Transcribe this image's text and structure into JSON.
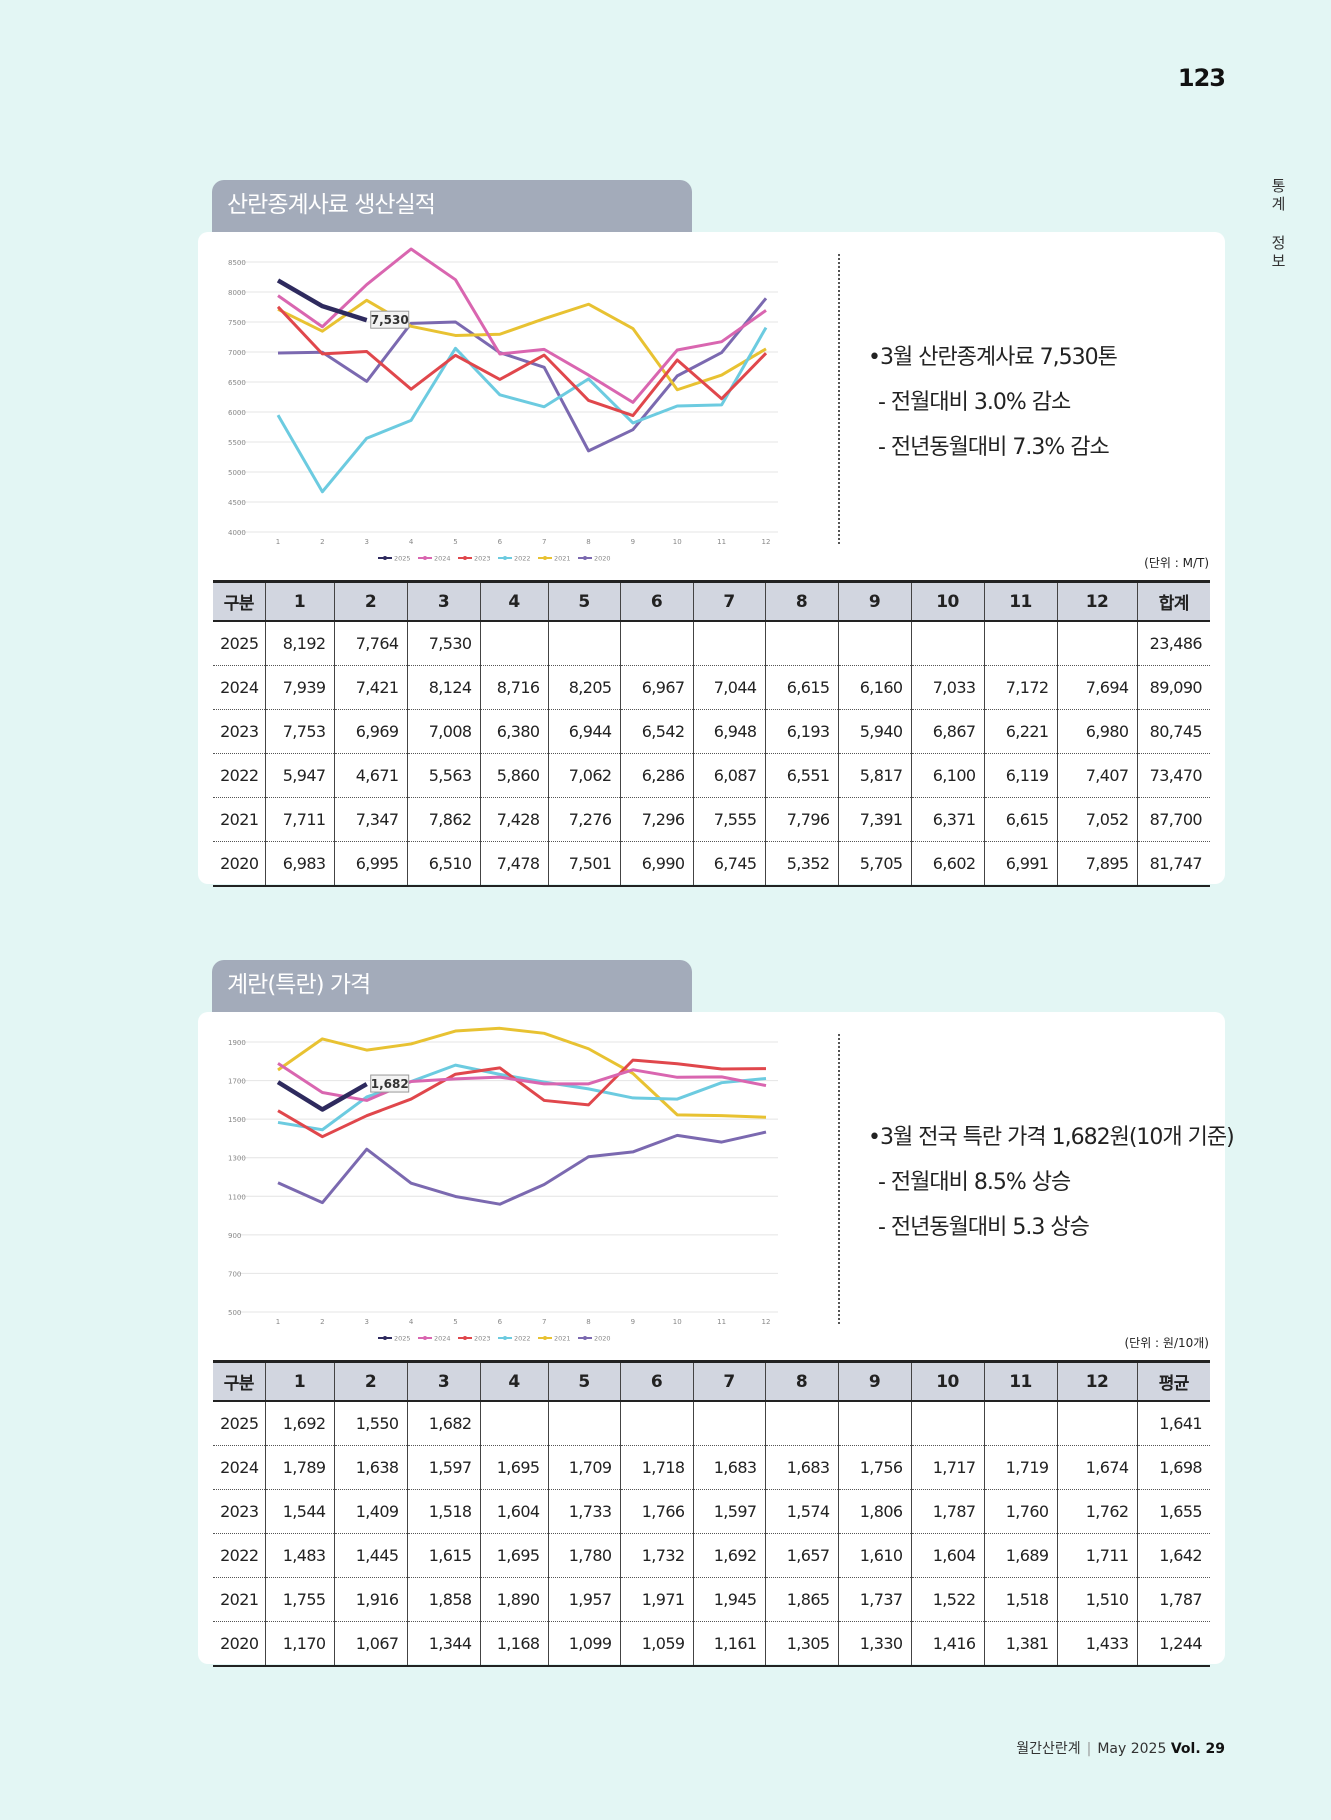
{
  "page_number": "123",
  "side_label": "통계 정보",
  "sections": [
    {
      "title": "산란종계사료 생산실적",
      "chart": {
        "type": "line",
        "categories": [
          "1",
          "2",
          "3",
          "4",
          "5",
          "6",
          "7",
          "8",
          "9",
          "10",
          "11",
          "12"
        ],
        "ylim": [
          4000,
          8500
        ],
        "yticks": [
          4000,
          4500,
          5000,
          5500,
          6000,
          6500,
          7000,
          7500,
          8000,
          8500
        ],
        "grid": true,
        "series": [
          {
            "name": "2025",
            "color": "#2e2a5e",
            "values": [
              8192,
              7764,
              7530,
              null,
              null,
              null,
              null,
              null,
              null,
              null,
              null,
              null
            ],
            "value_labels": [
              null,
              null,
              "7,530",
              null,
              null,
              null,
              null,
              null,
              null,
              null,
              null,
              null
            ]
          },
          {
            "name": "2024",
            "color": "#d966b0",
            "values": [
              7939,
              7421,
              8124,
              8716,
              8205,
              6967,
              7044,
              6615,
              6160,
              7033,
              7172,
              7694
            ]
          },
          {
            "name": "2023",
            "color": "#e0474c",
            "values": [
              7753,
              6969,
              7008,
              6380,
              6944,
              6542,
              6948,
              6193,
              5940,
              6867,
              6221,
              6980
            ]
          },
          {
            "name": "2022",
            "color": "#6ccbe0",
            "values": [
              5947,
              4671,
              5563,
              5860,
              7062,
              6286,
              6087,
              6551,
              5817,
              6100,
              6119,
              7407
            ]
          },
          {
            "name": "2021",
            "color": "#e8c232",
            "values": [
              7711,
              7347,
              7862,
              7428,
              7276,
              7296,
              7555,
              7796,
              7391,
              6371,
              6615,
              7052
            ]
          },
          {
            "name": "2020",
            "color": "#7b69b0",
            "values": [
              6983,
              6995,
              6510,
              7478,
              7501,
              6990,
              6745,
              5352,
              5705,
              6602,
              6991,
              7895
            ]
          }
        ]
      },
      "notes": [
        "•3월 산란종계사료 7,530톤",
        "- 전월대비 3.0% 감소",
        "- 전년동월대비 7.3% 감소"
      ],
      "unit": "(단위 : M/T)",
      "table": {
        "header": [
          "구분",
          "1",
          "2",
          "3",
          "4",
          "5",
          "6",
          "7",
          "8",
          "9",
          "10",
          "11",
          "12",
          "합계"
        ],
        "rows": [
          [
            "2025",
            "8,192",
            "7,764",
            "7,530",
            null,
            null,
            null,
            null,
            null,
            null,
            null,
            null,
            null,
            "23,486"
          ],
          [
            "2024",
            "7,939",
            "7,421",
            "8,124",
            "8,716",
            "8,205",
            "6,967",
            "7,044",
            "6,615",
            "6,160",
            "7,033",
            "7,172",
            "7,694",
            "89,090"
          ],
          [
            "2023",
            "7,753",
            "6,969",
            "7,008",
            "6,380",
            "6,944",
            "6,542",
            "6,948",
            "6,193",
            "5,940",
            "6,867",
            "6,221",
            "6,980",
            "80,745"
          ],
          [
            "2022",
            "5,947",
            "4,671",
            "5,563",
            "5,860",
            "7,062",
            "6,286",
            "6,087",
            "6,551",
            "5,817",
            "6,100",
            "6,119",
            "7,407",
            "73,470"
          ],
          [
            "2021",
            "7,711",
            "7,347",
            "7,862",
            "7,428",
            "7,276",
            "7,296",
            "7,555",
            "7,796",
            "7,391",
            "6,371",
            "6,615",
            "7,052",
            "87,700"
          ],
          [
            "2020",
            "6,983",
            "6,995",
            "6,510",
            "7,478",
            "7,501",
            "6,990",
            "6,745",
            "5,352",
            "5,705",
            "6,602",
            "6,991",
            "7,895",
            "81,747"
          ]
        ]
      }
    },
    {
      "title": "계란(특란) 가격",
      "chart": {
        "type": "line",
        "categories": [
          "1",
          "2",
          "3",
          "4",
          "5",
          "6",
          "7",
          "8",
          "9",
          "10",
          "11",
          "12"
        ],
        "ylim": [
          500,
          1900
        ],
        "yticks": [
          500,
          700,
          900,
          1100,
          1300,
          1500,
          1700,
          1900
        ],
        "grid": true,
        "series": [
          {
            "name": "2025",
            "color": "#2e2a5e",
            "values": [
              1692,
              1550,
              1682,
              null,
              null,
              null,
              null,
              null,
              null,
              null,
              null,
              null
            ],
            "value_labels": [
              null,
              null,
              "1,682",
              null,
              null,
              null,
              null,
              null,
              null,
              null,
              null,
              null
            ]
          },
          {
            "name": "2024",
            "color": "#d966b0",
            "values": [
              1789,
              1638,
              1597,
              1695,
              1709,
              1718,
              1683,
              1683,
              1756,
              1717,
              1719,
              1674
            ]
          },
          {
            "name": "2023",
            "color": "#e0474c",
            "values": [
              1544,
              1409,
              1518,
              1604,
              1733,
              1766,
              1597,
              1574,
              1806,
              1787,
              1760,
              1762
            ]
          },
          {
            "name": "2022",
            "color": "#6ccbe0",
            "values": [
              1483,
              1445,
              1615,
              1695,
              1780,
              1732,
              1692,
              1657,
              1610,
              1604,
              1689,
              1711
            ]
          },
          {
            "name": "2021",
            "color": "#e8c232",
            "values": [
              1755,
              1916,
              1858,
              1890,
              1957,
              1971,
              1945,
              1865,
              1737,
              1522,
              1518,
              1510
            ]
          },
          {
            "name": "2020",
            "color": "#7b69b0",
            "values": [
              1170,
              1067,
              1344,
              1168,
              1099,
              1059,
              1161,
              1305,
              1330,
              1416,
              1381,
              1433
            ]
          }
        ]
      },
      "notes": [
        "•3월 전국 특란 가격 1,682원(10개 기준)",
        "- 전월대비 8.5% 상승",
        "- 전년동월대비 5.3 상승"
      ],
      "unit": "(단위 : 원/10개)",
      "table": {
        "header": [
          "구분",
          "1",
          "2",
          "3",
          "4",
          "5",
          "6",
          "7",
          "8",
          "9",
          "10",
          "11",
          "12",
          "평균"
        ],
        "rows": [
          [
            "2025",
            "1,692",
            "1,550",
            "1,682",
            null,
            null,
            null,
            null,
            null,
            null,
            null,
            null,
            null,
            "1,641"
          ],
          [
            "2024",
            "1,789",
            "1,638",
            "1,597",
            "1,695",
            "1,709",
            "1,718",
            "1,683",
            "1,683",
            "1,756",
            "1,717",
            "1,719",
            "1,674",
            "1,698"
          ],
          [
            "2023",
            "1,544",
            "1,409",
            "1,518",
            "1,604",
            "1,733",
            "1,766",
            "1,597",
            "1,574",
            "1,806",
            "1,787",
            "1,760",
            "1,762",
            "1,655"
          ],
          [
            "2022",
            "1,483",
            "1,445",
            "1,615",
            "1,695",
            "1,780",
            "1,732",
            "1,692",
            "1,657",
            "1,610",
            "1,604",
            "1,689",
            "1,711",
            "1,642"
          ],
          [
            "2021",
            "1,755",
            "1,916",
            "1,858",
            "1,890",
            "1,957",
            "1,971",
            "1,945",
            "1,865",
            "1,737",
            "1,522",
            "1,518",
            "1,510",
            "1,787"
          ],
          [
            "2020",
            "1,170",
            "1,067",
            "1,344",
            "1,168",
            "1,099",
            "1,059",
            "1,161",
            "1,305",
            "1,330",
            "1,416",
            "1,381",
            "1,433",
            "1,244"
          ]
        ]
      }
    }
  ],
  "footer": {
    "magazine": "월간산란계",
    "issue": "May 2025",
    "volume": "Vol. 29"
  }
}
